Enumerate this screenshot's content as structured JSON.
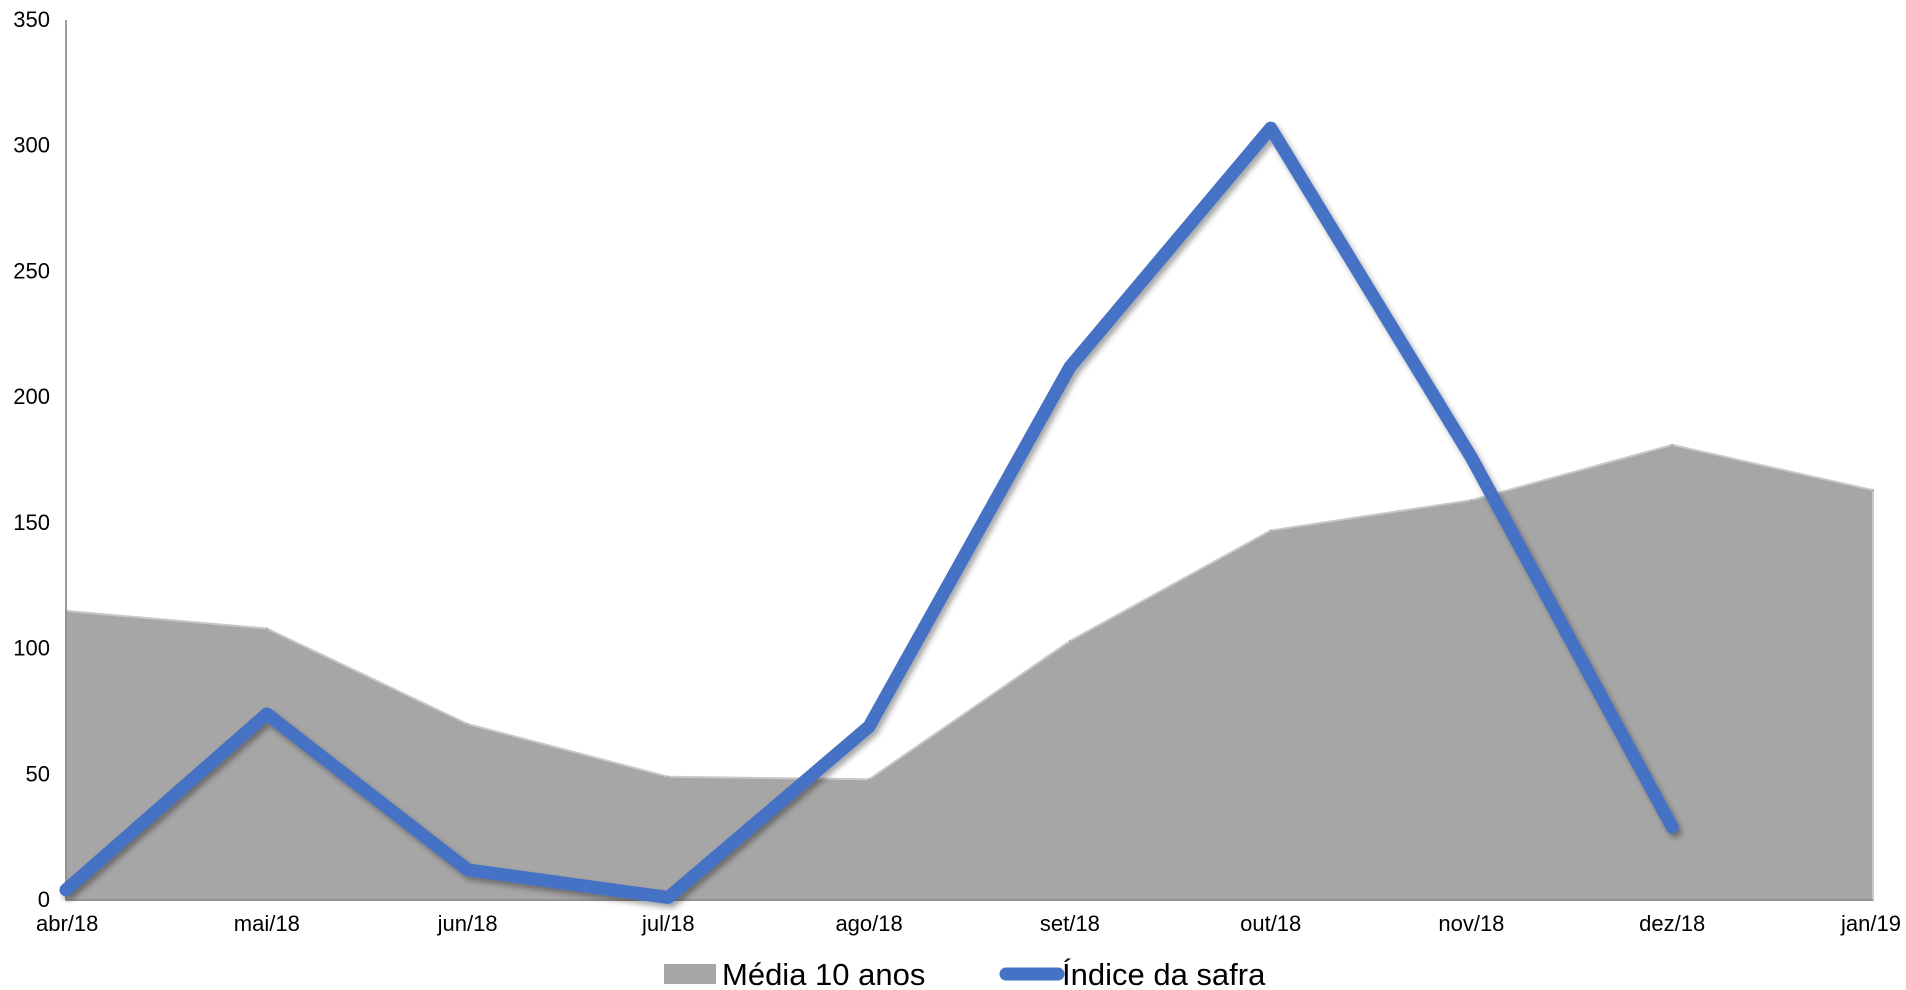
{
  "chart_data": {
    "type": "area",
    "title": "",
    "xlabel": "",
    "ylabel": "",
    "categories": [
      "abr/18",
      "mai/18",
      "jun/18",
      "jul/18",
      "ago/18",
      "set/18",
      "out/18",
      "nov/18",
      "dez/18",
      "jan/19"
    ],
    "ylim": [
      0,
      350
    ],
    "yticks": [
      0,
      50,
      100,
      150,
      200,
      250,
      300,
      350
    ],
    "grid": false,
    "legend_position": "bottom",
    "series": [
      {
        "name": "Média 10 anos",
        "type": "area",
        "color": "#a6a6a6",
        "values": [
          115,
          108,
          70,
          49,
          48,
          103,
          147,
          159,
          181,
          163
        ]
      },
      {
        "name": "Índice da safra",
        "type": "line",
        "color": "#4472c4",
        "values": [
          4,
          74,
          12,
          1,
          69,
          212,
          307,
          176,
          29,
          null
        ]
      }
    ]
  }
}
